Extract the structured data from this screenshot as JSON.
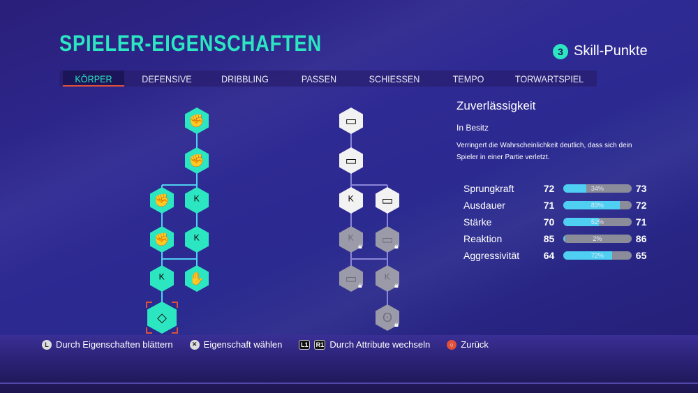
{
  "title": "SPIELER-EIGENSCHAFTEN",
  "skill_points": {
    "count": "3",
    "label": "Skill-Punkte"
  },
  "tabs": [
    {
      "label": "KÖRPER",
      "active": true
    },
    {
      "label": "DEFENSIVE"
    },
    {
      "label": "DRIBBLING"
    },
    {
      "label": "PASSEN"
    },
    {
      "label": "SCHIESSEN"
    },
    {
      "label": "TEMPO"
    },
    {
      "label": "TORWARTSPIEL"
    }
  ],
  "tree_left": [
    {
      "icon": "strength-fist-icon",
      "state": "owned"
    },
    {
      "icon": "strength-fist-icon",
      "state": "owned"
    },
    {
      "icon": "strength-fist-icon",
      "state": "owned"
    },
    {
      "icon": "kangaroo-icon",
      "state": "owned"
    },
    {
      "icon": "strength-fist-icon",
      "state": "owned"
    },
    {
      "icon": "kangaroo-icon",
      "state": "owned"
    },
    {
      "icon": "kangaroo-icon",
      "state": "owned"
    },
    {
      "icon": "bear-paw-icon",
      "state": "owned"
    },
    {
      "icon": "diamond-icon",
      "state": "owned",
      "selected": true
    }
  ],
  "tree_right": [
    {
      "icon": "battery-icon",
      "state": "unlocked"
    },
    {
      "icon": "battery-icon",
      "state": "unlocked"
    },
    {
      "icon": "kangaroo-icon",
      "state": "unlocked"
    },
    {
      "icon": "battery-icon",
      "state": "unlocked"
    },
    {
      "icon": "kangaroo-icon",
      "state": "locked"
    },
    {
      "icon": "battery-icon",
      "state": "locked"
    },
    {
      "icon": "battery-icon",
      "state": "locked"
    },
    {
      "icon": "kangaroo-icon",
      "state": "locked"
    },
    {
      "icon": "lungs-icon",
      "state": "locked"
    }
  ],
  "detail": {
    "title": "Zuverlässigkeit",
    "subtitle": "In Besitz",
    "description": "Verringert die Wahrscheinlichkeit deutlich, dass sich dein Spieler in einer Partie verletzt."
  },
  "stats": [
    {
      "name": "Sprungkraft",
      "from": "72",
      "to": "73",
      "percent": 34,
      "label": "34%"
    },
    {
      "name": "Ausdauer",
      "from": "71",
      "to": "72",
      "percent": 83,
      "label": "83%"
    },
    {
      "name": "Stärke",
      "from": "70",
      "to": "71",
      "percent": 52,
      "label": "52%"
    },
    {
      "name": "Reaktion",
      "from": "85",
      "to": "86",
      "percent": 2,
      "label": "2%"
    },
    {
      "name": "Aggressivität",
      "from": "64",
      "to": "65",
      "percent": 72,
      "label": "72%"
    }
  ],
  "footer": {
    "browse_btn": "L",
    "browse": "Durch Eigenschaften blättern",
    "select_btn": "✕",
    "select": "Eigenschaft wählen",
    "l1": "L1",
    "r1": "R1",
    "switch": "Durch Attribute wechseln",
    "back_btn": "○",
    "back": "Zurück"
  },
  "colors": {
    "accent": "#2ce6c2",
    "selection": "#e0503a",
    "bar_fill": "#4fd0f2",
    "background": "#2f2a94"
  }
}
